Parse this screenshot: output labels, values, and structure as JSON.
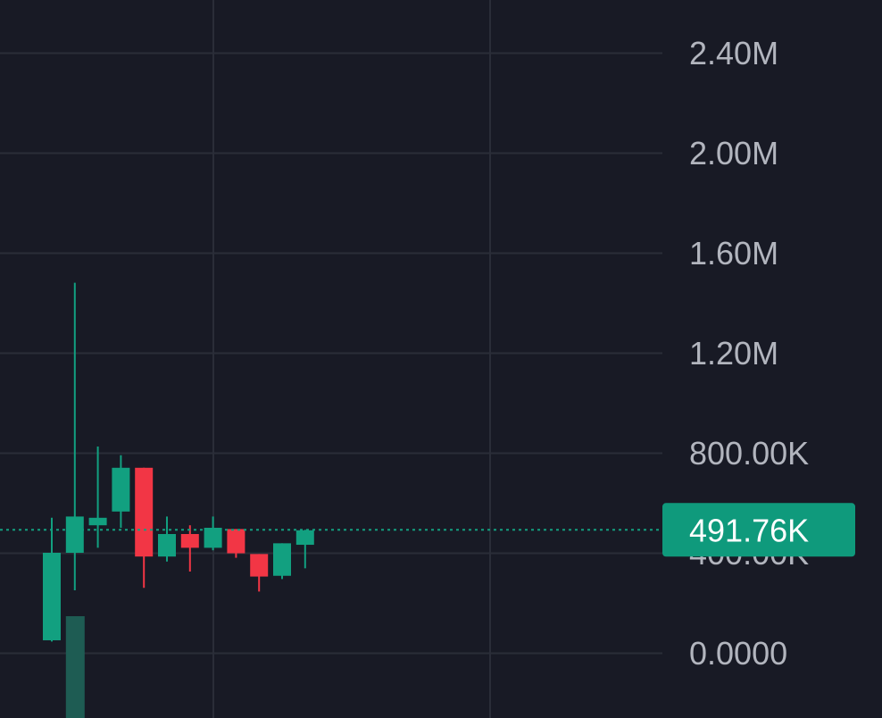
{
  "colors": {
    "background": "#181a25",
    "grid": "#2a2d38",
    "axis_text": "#b2b5be",
    "up": "#12a080",
    "down": "#f23645",
    "volume_up": "#1e5c53",
    "last_price_line": "#12a080",
    "last_price_label_bg": "#0f9a7c",
    "last_price_label_text": "#ffffff"
  },
  "chart_data": {
    "type": "candlestick",
    "y_axis": {
      "ticks": [
        {
          "value": 0,
          "label": "0.0000"
        },
        {
          "value": 400000,
          "label": "400.00K"
        },
        {
          "value": 800000,
          "label": "800.00K"
        },
        {
          "value": 1200000,
          "label": "1.20M"
        },
        {
          "value": 1600000,
          "label": "1.60M"
        },
        {
          "value": 2000000,
          "label": "2.00M"
        },
        {
          "value": 2400000,
          "label": "2.40M"
        }
      ],
      "range": [
        -250000,
        2600000
      ],
      "position": "right",
      "grid": true
    },
    "candles": [
      {
        "open": 50000,
        "high": 540000,
        "low": 45000,
        "close": 400000
      },
      {
        "open": 400000,
        "high": 1480000,
        "low": 250000,
        "close": 545000
      },
      {
        "open": 510000,
        "high": 825000,
        "low": 420000,
        "close": 540000
      },
      {
        "open": 565000,
        "high": 790000,
        "low": 500000,
        "close": 740000
      },
      {
        "open": 740000,
        "high": 740000,
        "low": 260000,
        "close": 385000
      },
      {
        "open": 385000,
        "high": 545000,
        "low": 365000,
        "close": 475000
      },
      {
        "open": 475000,
        "high": 510000,
        "low": 325000,
        "close": 420000
      },
      {
        "open": 420000,
        "high": 545000,
        "low": 410000,
        "close": 500000
      },
      {
        "open": 495000,
        "high": 495000,
        "low": 380000,
        "close": 398000
      },
      {
        "open": 395000,
        "high": 395000,
        "low": 245000,
        "close": 305000
      },
      {
        "open": 308000,
        "high": 438000,
        "low": 295000,
        "close": 438000
      },
      {
        "open": 432000,
        "high": 492000,
        "low": 338000,
        "close": 490000
      }
    ],
    "volume_bars": [
      {
        "candle_index": 1,
        "value": 1.0
      }
    ],
    "last_price": {
      "value": 491760,
      "label": "491.76K"
    }
  }
}
